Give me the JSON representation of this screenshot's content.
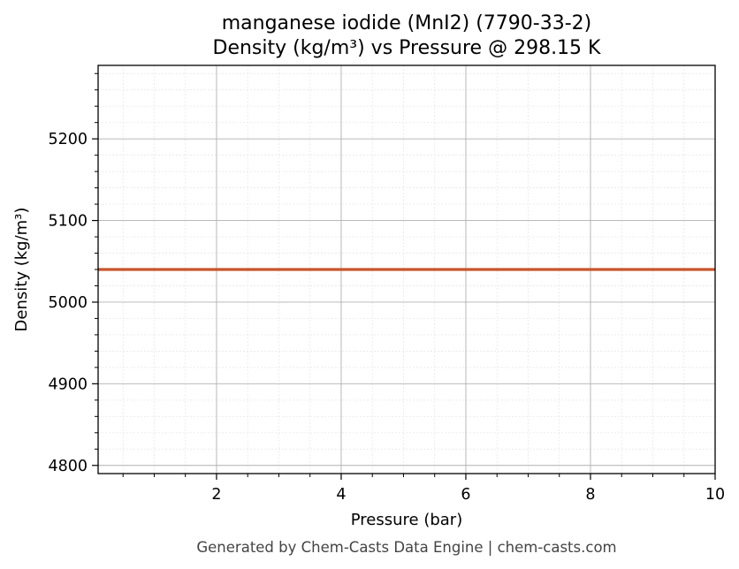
{
  "chart_data": {
    "type": "line",
    "title": "manganese iodide (MnI2) (7790-33-2)",
    "subtitle": "Density (kg/m³) vs Pressure @ 298.15 K",
    "xlabel": "Pressure (bar)",
    "ylabel": "Density (kg/m³)",
    "xlim": [
      0.1,
      10
    ],
    "ylim": [
      4790,
      5290
    ],
    "x_ticks": [
      2,
      4,
      6,
      8,
      10
    ],
    "x_tick_labels": [
      "2",
      "4",
      "6",
      "8",
      "10"
    ],
    "y_ticks": [
      4800,
      4900,
      5000,
      5100,
      5200
    ],
    "y_tick_labels": [
      "4800",
      "4900",
      "5000",
      "5100",
      "5200"
    ],
    "grid": true,
    "series": [
      {
        "color": "#c8552b",
        "x": [
          0.1,
          10
        ],
        "y": [
          5040,
          5040
        ]
      }
    ]
  },
  "footer": "Generated by Chem-Casts Data Engine | chem-casts.com"
}
